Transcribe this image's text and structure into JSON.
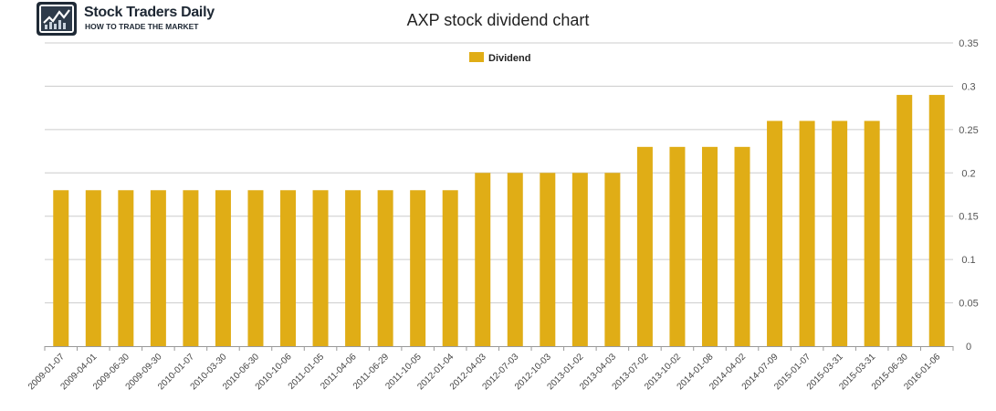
{
  "logo": {
    "name": "Stock Traders Daily",
    "tagline": "HOW TO TRADE THE MARKET"
  },
  "chart_data": {
    "type": "bar",
    "title": "AXP stock dividend chart",
    "xlabel": "",
    "ylabel": "",
    "legend_position": "top-center",
    "grid": true,
    "ylim": [
      0,
      0.35
    ],
    "yticks": [
      "0",
      "0.05",
      "0.1",
      "0.15",
      "0.2",
      "0.25",
      "0.3",
      "0.35"
    ],
    "categories": [
      "2009-01-07",
      "2009-04-01",
      "2009-06-30",
      "2009-09-30",
      "2010-01-07",
      "2010-03-30",
      "2010-06-30",
      "2010-10-06",
      "2011-01-05",
      "2011-04-06",
      "2011-06-29",
      "2011-10-05",
      "2012-01-04",
      "2012-04-03",
      "2012-07-03",
      "2012-10-03",
      "2013-01-02",
      "2013-04-03",
      "2013-07-02",
      "2013-10-02",
      "2014-01-08",
      "2014-04-02",
      "2014-07-09",
      "2015-01-07",
      "2015-03-31",
      "2015-03-31",
      "2015-06-30",
      "2016-01-06"
    ],
    "series": [
      {
        "name": "Dividend",
        "color": "#e0ad16",
        "values": [
          0.18,
          0.18,
          0.18,
          0.18,
          0.18,
          0.18,
          0.18,
          0.18,
          0.18,
          0.18,
          0.18,
          0.18,
          0.18,
          0.2,
          0.2,
          0.2,
          0.2,
          0.2,
          0.23,
          0.23,
          0.23,
          0.23,
          0.26,
          0.26,
          0.26,
          0.26,
          0.29,
          0.29
        ]
      }
    ],
    "colors": {
      "grid": "#cccccc",
      "axis": "#999999"
    }
  }
}
